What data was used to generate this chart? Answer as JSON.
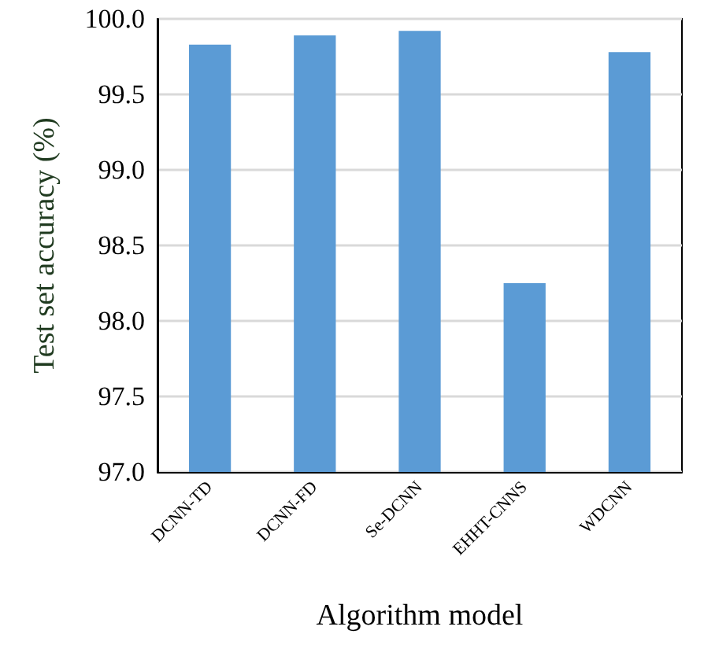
{
  "chart_data": {
    "type": "bar",
    "xlabel": "Algorithm model",
    "ylabel": "Test set accuracy (%)",
    "categories": [
      "DCNN-TD",
      "DCNN-FD",
      "Se-DCNN",
      "EHHT-CNNS",
      "WDCNN"
    ],
    "values": [
      99.83,
      99.89,
      99.92,
      98.25,
      99.78
    ],
    "color": "#5b9bd5",
    "ylim": [
      97.0,
      100.0
    ],
    "yticks": [
      {
        "value": 97,
        "label": "97.0"
      },
      {
        "value": 97.5,
        "label": "97.5"
      },
      {
        "value": 98,
        "label": "98.0"
      },
      {
        "value": 98.5,
        "label": "98.5"
      },
      {
        "value": 99,
        "label": "99.0"
      },
      {
        "value": 99.5,
        "label": "99.5"
      },
      {
        "value": 100,
        "label": "100.0"
      }
    ],
    "grid": "y"
  }
}
